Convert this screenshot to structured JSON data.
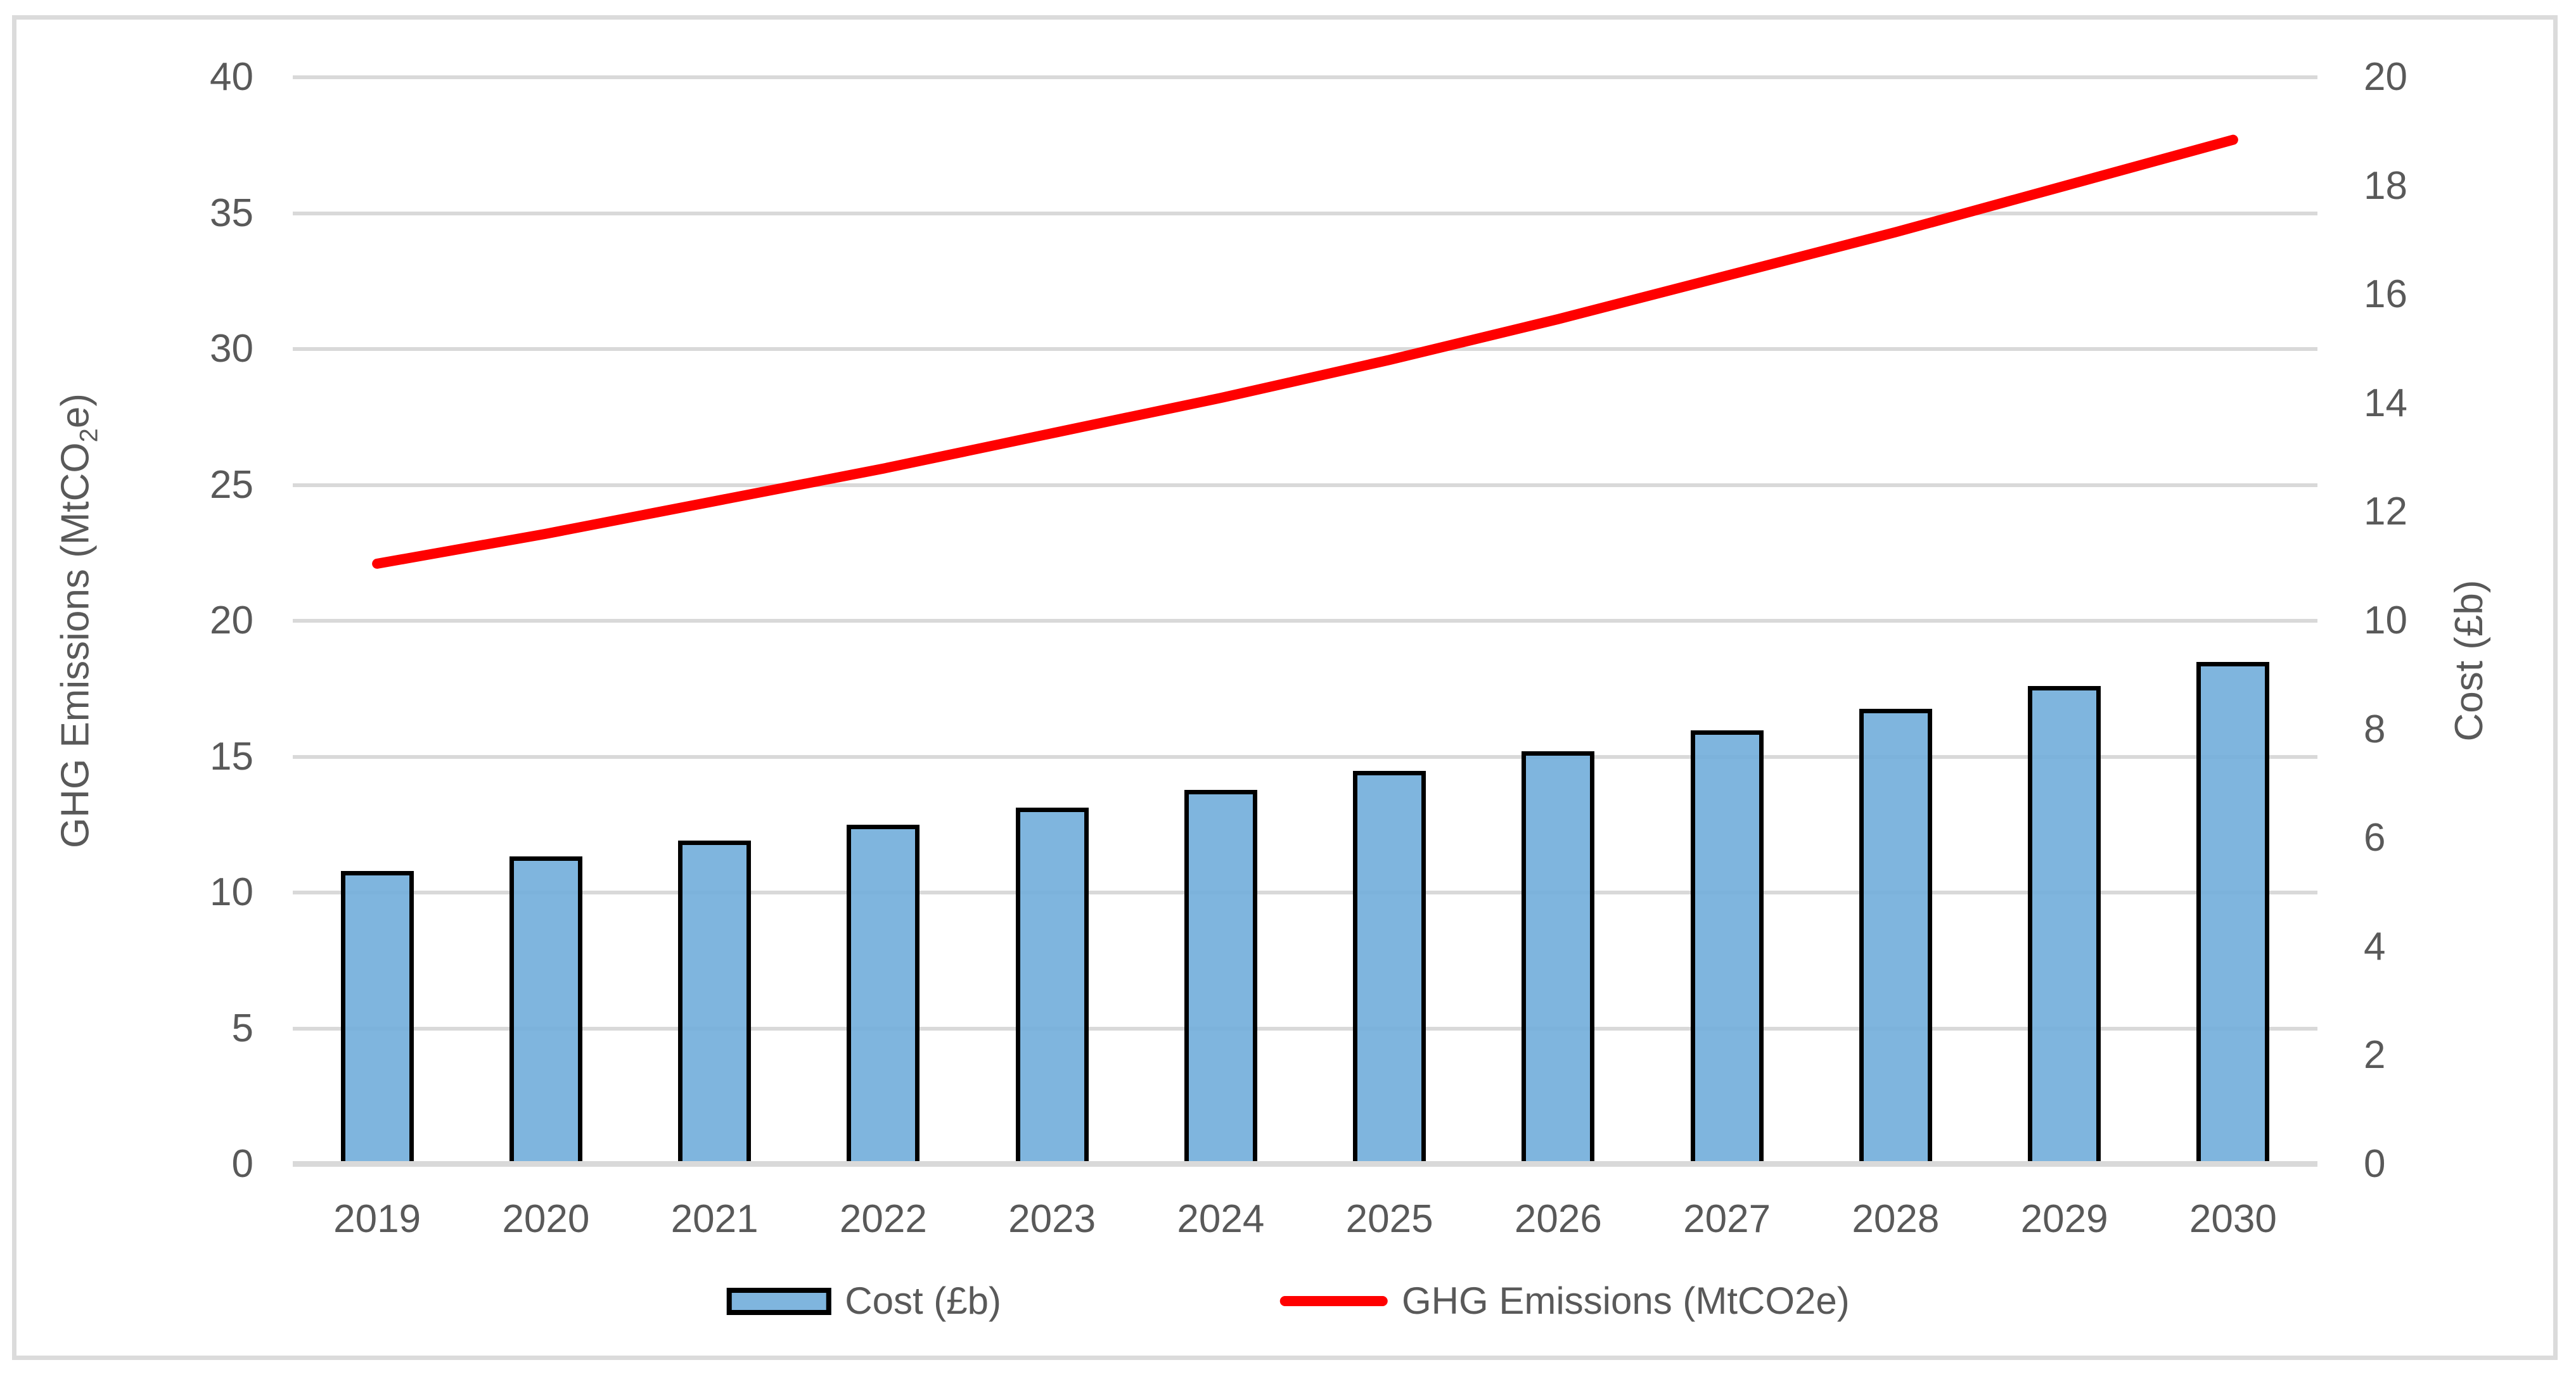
{
  "chart_data": {
    "type": "combo-bar-line",
    "categories": [
      "2019",
      "2020",
      "2021",
      "2022",
      "2023",
      "2024",
      "2025",
      "2026",
      "2027",
      "2028",
      "2029",
      "2030"
    ],
    "series": [
      {
        "name": "Cost (£b)",
        "type": "bar",
        "axis": "right",
        "fill_color": "#7FB4DE",
        "border_color": "#000000",
        "values": [
          5.4,
          5.67,
          5.95,
          6.25,
          6.56,
          6.89,
          7.24,
          7.6,
          7.98,
          8.38,
          8.8,
          9.24
        ]
      },
      {
        "name": "GHG Emissions (MtCO2e)",
        "type": "line",
        "axis": "left",
        "color": "#FF0000",
        "values": [
          22.1,
          23.2,
          24.4,
          25.6,
          26.9,
          28.2,
          29.6,
          31.1,
          32.7,
          34.3,
          36.0,
          37.7
        ]
      }
    ],
    "left_axis": {
      "title": "GHG Emissions (MtCO2e)",
      "title_pre": "GHG Emissions (MtCO",
      "title_sub": "2",
      "title_post": "e)",
      "min": 0,
      "max": 40,
      "step": 5,
      "ticks": [
        "0",
        "5",
        "10",
        "15",
        "20",
        "25",
        "30",
        "35",
        "40"
      ]
    },
    "right_axis": {
      "title": "Cost (£b)",
      "min": 0,
      "max": 20,
      "step": 2,
      "ticks": [
        "0",
        "2",
        "4",
        "6",
        "8",
        "10",
        "12",
        "14",
        "16",
        "18",
        "20"
      ]
    },
    "grid": true,
    "legend_position": "bottom"
  },
  "legend": {
    "items": [
      {
        "label": "Cost (£b)",
        "marker": "bar-swatch"
      },
      {
        "label": "GHG Emissions (MtCO2e)",
        "marker": "line-marker"
      }
    ]
  },
  "colors": {
    "bar_fill": "#7FB4DE",
    "bar_border": "#000000",
    "line": "#FF0000",
    "gridline": "#D9D9D9",
    "frame_border": "#DBDBDB",
    "text": "#595959"
  }
}
